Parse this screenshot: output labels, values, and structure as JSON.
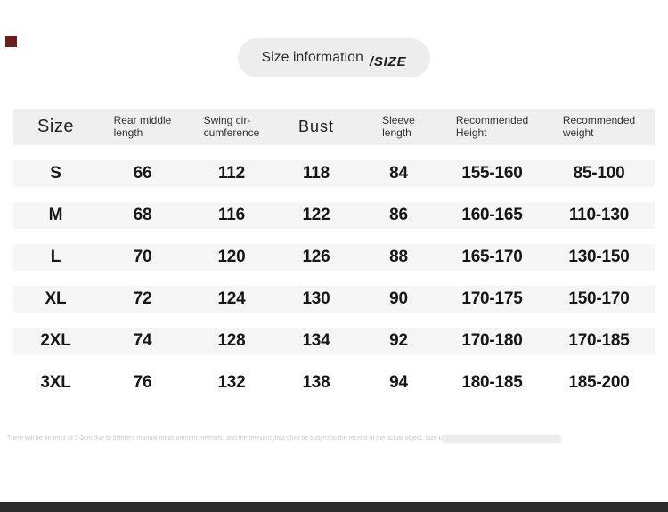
{
  "colors": {
    "pill_bg": "#EDEDED",
    "header_bg": "#EFEFEF",
    "row_bg": "#F5F5F5",
    "accent_square": "#6B1D1D",
    "bottom_bar": "#2B2B2B",
    "footnote_text": "#CBCBCB"
  },
  "title": {
    "main": "Size information",
    "suffix": "/SIZE"
  },
  "table": {
    "columns": [
      {
        "line1": "Size"
      },
      {
        "line1": "Rear middle",
        "line2": "length"
      },
      {
        "line1": "Swing cir-",
        "line2": "cumference"
      },
      {
        "line1": "Bust"
      },
      {
        "line1": "Sleeve",
        "line2": "length"
      },
      {
        "line1": "Recommended",
        "line2": "Height"
      },
      {
        "line1": "Recommended",
        "line2": "weight"
      }
    ],
    "rows": [
      {
        "cells": [
          "S",
          "66",
          "112",
          "118",
          "84",
          "155-160",
          "85-100"
        ]
      },
      {
        "cells": [
          "M",
          "68",
          "116",
          "122",
          "86",
          "160-165",
          "110-130"
        ]
      },
      {
        "cells": [
          "L",
          "70",
          "120",
          "126",
          "88",
          "165-170",
          "130-150"
        ]
      },
      {
        "cells": [
          "XL",
          "72",
          "124",
          "130",
          "90",
          "170-175",
          "150-170"
        ]
      },
      {
        "cells": [
          "2XL",
          "74",
          "128",
          "134",
          "92",
          "170-180",
          "170-185"
        ]
      },
      {
        "cells": [
          "3XL",
          "76",
          "132",
          "138",
          "94",
          "180-185",
          "185-200"
        ]
      }
    ]
  },
  "footnote": "There will be an error of 1-3cm due to different manual measurement methods, and the relevant data shall be subject to the receipt of the actual object. Size unit: CM",
  "chart_data": {
    "type": "table",
    "title": "Size information /SIZE",
    "columns": [
      "Size",
      "Rear middle length",
      "Swing circumference",
      "Bust",
      "Sleeve length",
      "Recommended Height",
      "Recommended weight"
    ],
    "rows": [
      [
        "S",
        66,
        112,
        118,
        84,
        "155-160",
        "85-100"
      ],
      [
        "M",
        68,
        116,
        122,
        86,
        "160-165",
        "110-130"
      ],
      [
        "L",
        70,
        120,
        126,
        88,
        "165-170",
        "130-150"
      ],
      [
        "XL",
        72,
        124,
        130,
        90,
        "170-175",
        "150-170"
      ],
      [
        "2XL",
        74,
        128,
        134,
        92,
        "170-180",
        "170-185"
      ],
      [
        "3XL",
        76,
        132,
        138,
        94,
        "180-185",
        "185-200"
      ]
    ],
    "unit": "cm",
    "notes": "size chart table; gray banded rows; footnote disclaimer at bottom"
  }
}
